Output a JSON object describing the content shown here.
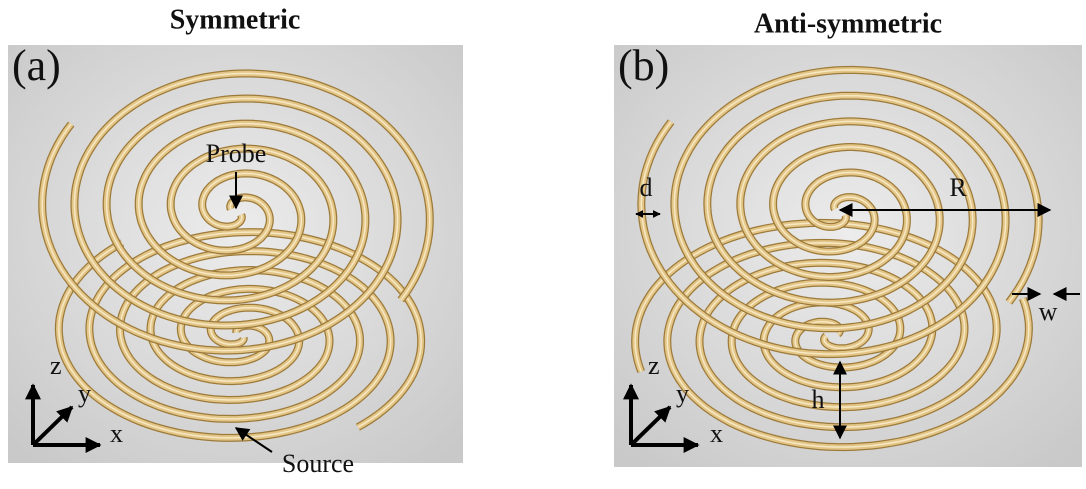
{
  "panels": [
    {
      "title": "Symmetric",
      "label": "(a)",
      "annotations": {
        "probe": "Probe",
        "source": "Source"
      },
      "axes": {
        "z": "z",
        "y": "y",
        "x": "x"
      }
    },
    {
      "title": "Anti-symmetric",
      "label": "(b)",
      "annotations": {
        "d": "d",
        "R": "R",
        "w": "w",
        "h": "h"
      },
      "axes": {
        "z": "z",
        "y": "y",
        "x": "x"
      }
    }
  ]
}
